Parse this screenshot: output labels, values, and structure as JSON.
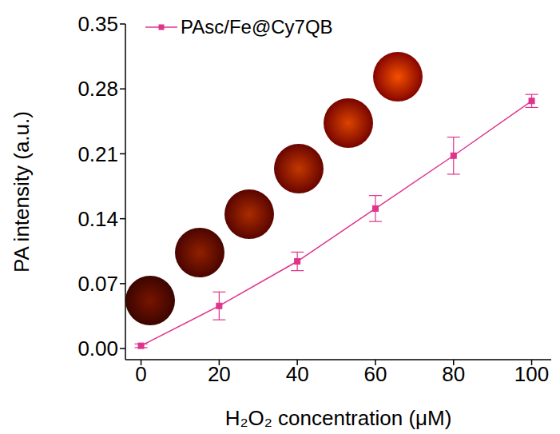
{
  "chart_data": {
    "type": "line",
    "xlabel": "H₂O₂ concentration (μM)",
    "ylabel": "PA intensity (a.u.)",
    "x": [
      0,
      20,
      40,
      60,
      80,
      100
    ],
    "series": [
      {
        "name": "PAsc/Fe@Cy7QB",
        "color": "#e0338c",
        "marker": "square",
        "values": [
          0.003,
          0.046,
          0.094,
          0.151,
          0.208,
          0.267
        ],
        "errors": [
          0.002,
          0.015,
          0.01,
          0.014,
          0.02,
          0.007
        ]
      }
    ],
    "xlim": [
      -4,
      105
    ],
    "xticks": [
      0,
      20,
      40,
      60,
      80,
      100
    ],
    "ylim": [
      -0.012,
      0.35
    ],
    "yticks": [
      {
        "value": 0,
        "label": "0.00"
      },
      0.07,
      0.14,
      0.21,
      0.28,
      0.35
    ],
    "legend": "upper left"
  }
}
